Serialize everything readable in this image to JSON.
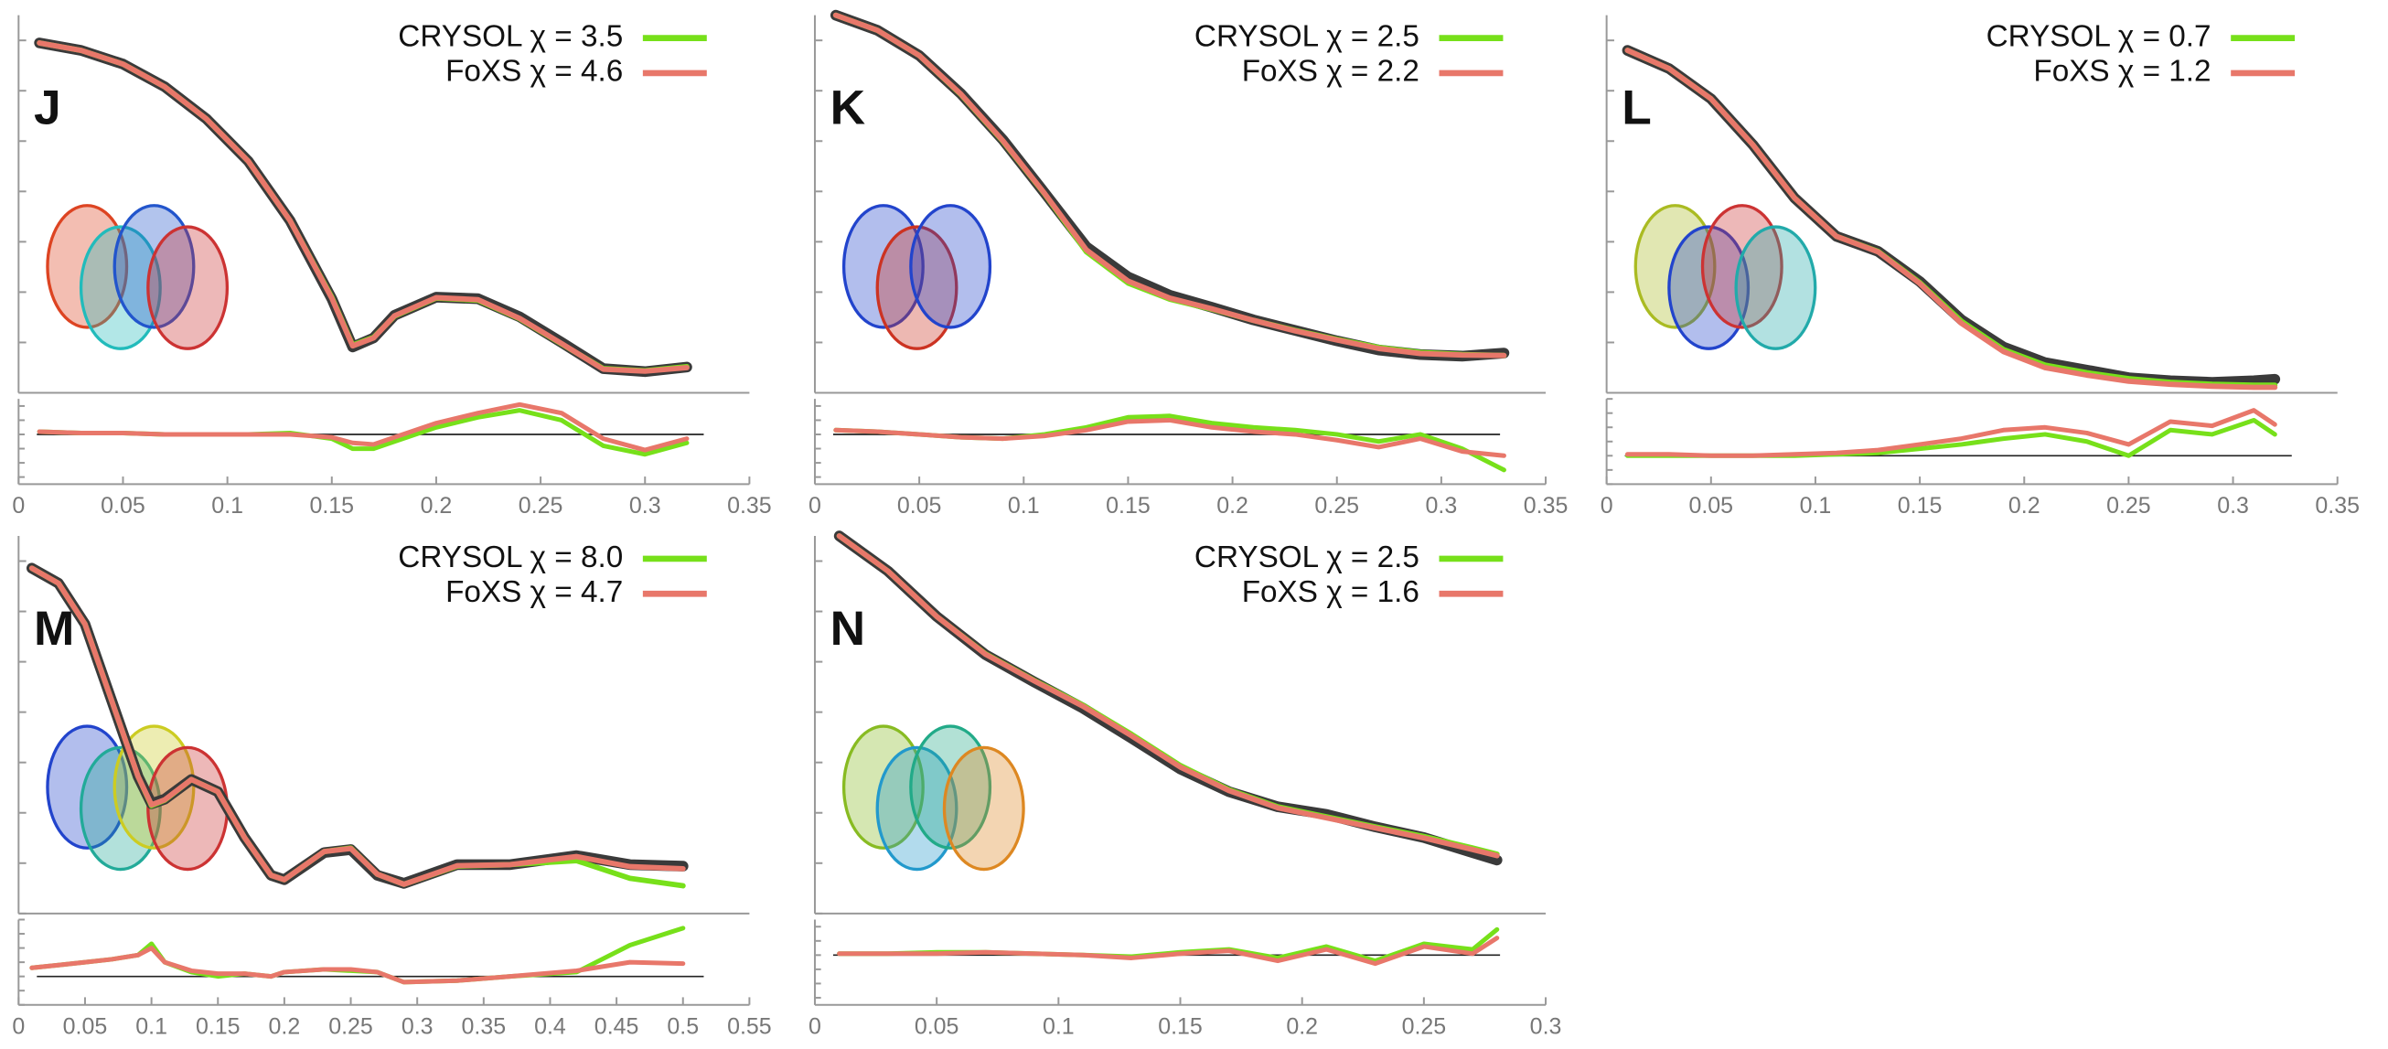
{
  "chart_data": [
    {
      "type": "line",
      "title": "J",
      "xlim": [
        0,
        0.35
      ],
      "xticks": [
        0,
        0.05,
        0.1,
        0.15,
        0.2,
        0.25,
        0.3,
        0.35
      ],
      "ylim": [
        0,
        7.5
      ],
      "yticks": [
        0,
        1,
        2,
        3,
        4,
        5,
        6,
        7
      ],
      "x": [
        0.01,
        0.03,
        0.05,
        0.07,
        0.09,
        0.11,
        0.13,
        0.15,
        0.16,
        0.17,
        0.18,
        0.2,
        0.22,
        0.24,
        0.26,
        0.28,
        0.3,
        0.32
      ],
      "data": {
        "color": "#3a3a3a",
        "values": [
          6.95,
          6.8,
          6.53,
          6.08,
          5.44,
          4.6,
          3.42,
          1.87,
          0.91,
          1.09,
          1.54,
          1.9,
          1.87,
          1.51,
          1.0,
          0.48,
          0.42,
          0.51
        ]
      },
      "series": [
        {
          "name": "CRYSOL χ = 3.5",
          "color": "#77e01a",
          "values": [
            6.95,
            6.8,
            6.53,
            6.08,
            5.44,
            4.6,
            3.42,
            1.9,
            0.95,
            1.1,
            1.52,
            1.88,
            1.84,
            1.47,
            0.97,
            0.48,
            0.44,
            0.52
          ]
        },
        {
          "name": "FoXS χ = 4.6",
          "color": "#e8776a",
          "values": [
            6.95,
            6.8,
            6.53,
            6.08,
            5.44,
            4.6,
            3.42,
            1.88,
            0.93,
            1.09,
            1.53,
            1.89,
            1.85,
            1.48,
            0.98,
            0.47,
            0.43,
            0.5
          ]
        }
      ],
      "residuals": {
        "ylim": [
          -3.5,
          2.5
        ],
        "yticks": [
          -3,
          -2,
          -1,
          0,
          1,
          2
        ],
        "zero": 0,
        "series": [
          {
            "color": "#77e01a",
            "values": [
              0.2,
              0.1,
              0.1,
              0,
              0,
              0,
              0.1,
              -0.3,
              -1,
              -1,
              -0.5,
              0.5,
              1.2,
              1.7,
              1,
              -0.8,
              -1.4,
              -0.6
            ]
          },
          {
            "color": "#e8776a",
            "values": [
              0.2,
              0.1,
              0.1,
              0,
              0,
              0,
              0,
              -0.2,
              -0.6,
              -0.7,
              -0.2,
              0.8,
              1.5,
              2.1,
              1.5,
              -0.3,
              -1.1,
              -0.3
            ]
          }
        ]
      }
    },
    {
      "type": "line",
      "title": "K",
      "xlim": [
        0,
        0.35
      ],
      "xticks": [
        0,
        0.05,
        0.1,
        0.15,
        0.2,
        0.25,
        0.3,
        0.35
      ],
      "ylim": [
        0,
        7.5
      ],
      "yticks": [
        0,
        1,
        2,
        3,
        4,
        5,
        6,
        7
      ],
      "x": [
        0.01,
        0.03,
        0.05,
        0.07,
        0.09,
        0.11,
        0.13,
        0.15,
        0.17,
        0.19,
        0.21,
        0.23,
        0.25,
        0.27,
        0.29,
        0.31,
        0.33
      ],
      "data": {
        "color": "#3a3a3a",
        "values": [
          7.5,
          7.2,
          6.7,
          5.94,
          5.03,
          3.97,
          2.9,
          2.3,
          1.94,
          1.7,
          1.45,
          1.24,
          1.03,
          0.85,
          0.76,
          0.73,
          0.79
        ]
      },
      "series": [
        {
          "name": "CRYSOL χ = 2.5",
          "color": "#77e01a",
          "values": [
            7.5,
            7.2,
            6.7,
            5.92,
            5.0,
            3.95,
            2.8,
            2.18,
            1.86,
            1.66,
            1.44,
            1.24,
            1.06,
            0.9,
            0.8,
            0.76,
            0.74
          ]
        },
        {
          "name": "FoXS χ = 2.2",
          "color": "#e8776a",
          "values": [
            7.5,
            7.2,
            6.7,
            5.93,
            5.01,
            3.96,
            2.84,
            2.22,
            1.88,
            1.67,
            1.44,
            1.23,
            1.05,
            0.88,
            0.78,
            0.75,
            0.74
          ]
        }
      ],
      "residuals": {
        "ylim": [
          -3.5,
          2.5
        ],
        "yticks": [
          -3,
          -2,
          -1,
          0,
          1,
          2
        ],
        "zero": 0,
        "series": [
          {
            "color": "#77e01a",
            "values": [
              0.3,
              0.2,
              0,
              -0.2,
              -0.3,
              0,
              0.5,
              1.2,
              1.3,
              0.8,
              0.5,
              0.3,
              0,
              -0.5,
              0,
              -1,
              -2.5
            ]
          },
          {
            "color": "#e8776a",
            "values": [
              0.3,
              0.2,
              0,
              -0.2,
              -0.3,
              -0.1,
              0.3,
              0.9,
              1.0,
              0.5,
              0.2,
              0,
              -0.4,
              -0.9,
              -0.3,
              -1.2,
              -1.5
            ]
          }
        ]
      }
    },
    {
      "type": "line",
      "title": "L",
      "xlim": [
        0,
        0.35
      ],
      "xticks": [
        0,
        0.05,
        0.1,
        0.15,
        0.2,
        0.25,
        0.3,
        0.35
      ],
      "ylim": [
        0,
        7.5
      ],
      "yticks": [
        0,
        1,
        2,
        3,
        4,
        5,
        6,
        7
      ],
      "x": [
        0.01,
        0.03,
        0.05,
        0.07,
        0.09,
        0.11,
        0.13,
        0.15,
        0.17,
        0.19,
        0.21,
        0.23,
        0.25,
        0.27,
        0.29,
        0.31,
        0.32
      ],
      "data": {
        "color": "#3a3a3a",
        "values": [
          6.8,
          6.44,
          5.84,
          4.93,
          3.87,
          3.11,
          2.81,
          2.21,
          1.45,
          0.91,
          0.6,
          0.45,
          0.3,
          0.24,
          0.21,
          0.24,
          0.27
        ]
      },
      "series": [
        {
          "name": "CRYSOL χ = 0.7",
          "color": "#77e01a",
          "values": [
            6.8,
            6.44,
            5.84,
            4.93,
            3.87,
            3.11,
            2.81,
            2.19,
            1.42,
            0.86,
            0.55,
            0.4,
            0.28,
            0.21,
            0.17,
            0.15,
            0.15
          ]
        },
        {
          "name": "FoXS χ = 1.2",
          "color": "#e8776a",
          "values": [
            6.8,
            6.44,
            5.84,
            4.93,
            3.87,
            3.11,
            2.8,
            2.17,
            1.38,
            0.82,
            0.5,
            0.35,
            0.23,
            0.17,
            0.13,
            0.11,
            0.11
          ]
        }
      ],
      "residuals": {
        "ylim": [
          -2,
          4
        ],
        "yticks": [
          -2,
          -1,
          0,
          1,
          2,
          3,
          4
        ],
        "zero": 0,
        "series": [
          {
            "color": "#77e01a",
            "values": [
              0,
              0,
              0,
              0,
              0,
              0.1,
              0.2,
              0.5,
              0.8,
              1.2,
              1.5,
              1,
              0,
              1.8,
              1.5,
              2.5,
              1.5
            ]
          },
          {
            "color": "#e8776a",
            "values": [
              0.1,
              0.1,
              0,
              0,
              0.1,
              0.2,
              0.4,
              0.8,
              1.2,
              1.8,
              2,
              1.6,
              0.8,
              2.4,
              2.1,
              3.2,
              2.2
            ]
          }
        ]
      }
    },
    {
      "type": "line",
      "title": "M",
      "xlim": [
        0,
        0.55
      ],
      "xticks": [
        0,
        0.05,
        0.1,
        0.15,
        0.2,
        0.25,
        0.3,
        0.35,
        0.4,
        0.45,
        0.5,
        0.55
      ],
      "ylim": [
        0,
        7.5
      ],
      "yticks": [
        0,
        1,
        2,
        3,
        4,
        5,
        6,
        7
      ],
      "x": [
        0.01,
        0.03,
        0.05,
        0.07,
        0.09,
        0.1,
        0.11,
        0.13,
        0.15,
        0.17,
        0.19,
        0.2,
        0.23,
        0.25,
        0.27,
        0.29,
        0.33,
        0.37,
        0.42,
        0.46,
        0.5
      ],
      "data": {
        "color": "#3a3a3a",
        "values": [
          6.86,
          6.56,
          5.75,
          4.23,
          2.72,
          2.18,
          2.27,
          2.66,
          2.42,
          1.51,
          0.76,
          0.67,
          1.21,
          1.27,
          0.76,
          0.6,
          0.97,
          0.97,
          1.15,
          0.97,
          0.94
        ]
      },
      "series": [
        {
          "name": "CRYSOL χ = 8.0",
          "color": "#77e01a",
          "values": [
            6.86,
            6.56,
            5.75,
            4.23,
            2.72,
            2.14,
            2.25,
            2.66,
            2.42,
            1.51,
            0.76,
            0.67,
            1.23,
            1.3,
            0.78,
            0.58,
            0.94,
            0.97,
            1.05,
            0.7,
            0.55
          ]
        },
        {
          "name": "FoXS χ = 4.7",
          "color": "#e8776a",
          "values": [
            6.86,
            6.56,
            5.75,
            4.23,
            2.72,
            2.16,
            2.26,
            2.66,
            2.42,
            1.51,
            0.76,
            0.67,
            1.23,
            1.29,
            0.78,
            0.58,
            0.95,
            0.97,
            1.13,
            0.93,
            0.89
          ]
        }
      ],
      "residuals": {
        "ylim": [
          -2,
          4
        ],
        "yticks": [
          -2,
          -1,
          0,
          1,
          2,
          3,
          4
        ],
        "zero": 0,
        "series": [
          {
            "color": "#77e01a",
            "values": [
              0.6,
              0.8,
              1,
              1.2,
              1.5,
              2.3,
              1,
              0.3,
              0,
              0.2,
              0,
              0.3,
              0.5,
              0.4,
              0.3,
              -0.4,
              -0.3,
              0,
              0.3,
              2.2,
              3.4
            ]
          },
          {
            "color": "#e8776a",
            "values": [
              0.6,
              0.8,
              1,
              1.2,
              1.5,
              2,
              1,
              0.4,
              0.2,
              0.2,
              0,
              0.3,
              0.5,
              0.5,
              0.3,
              -0.4,
              -0.3,
              0,
              0.4,
              1,
              0.9
            ]
          }
        ]
      }
    },
    {
      "type": "line",
      "title": "N",
      "xlim": [
        0,
        0.3
      ],
      "xticks": [
        0,
        0.05,
        0.1,
        0.15,
        0.2,
        0.25,
        0.3
      ],
      "ylim": [
        0,
        7.5
      ],
      "yticks": [
        0,
        1,
        2,
        3,
        4,
        5,
        6,
        7
      ],
      "x": [
        0.01,
        0.03,
        0.05,
        0.07,
        0.09,
        0.11,
        0.13,
        0.15,
        0.17,
        0.19,
        0.21,
        0.23,
        0.25,
        0.27,
        0.28
      ],
      "data": {
        "color": "#3a3a3a",
        "values": [
          7.5,
          6.8,
          5.9,
          5.14,
          4.6,
          4.08,
          3.48,
          2.87,
          2.42,
          2.12,
          1.97,
          1.72,
          1.51,
          1.21,
          1.06
        ]
      },
      "series": [
        {
          "name": "CRYSOL χ = 2.5",
          "color": "#77e01a",
          "values": [
            7.5,
            6.8,
            5.9,
            5.16,
            4.63,
            4.14,
            3.56,
            2.94,
            2.46,
            2.12,
            1.92,
            1.72,
            1.53,
            1.3,
            1.18
          ]
        },
        {
          "name": "FoXS χ = 1.6",
          "color": "#e8776a",
          "values": [
            7.5,
            6.8,
            5.9,
            5.15,
            4.62,
            4.12,
            3.53,
            2.91,
            2.44,
            2.1,
            1.9,
            1.7,
            1.5,
            1.27,
            1.15
          ]
        }
      ],
      "residuals": {
        "ylim": [
          -3.5,
          2.5
        ],
        "yticks": [
          -3,
          -2,
          -1,
          0,
          1,
          2
        ],
        "zero": 0,
        "series": [
          {
            "color": "#77e01a",
            "values": [
              0.1,
              0.1,
              0.2,
              0.2,
              0.1,
              0,
              -0.1,
              0.2,
              0.4,
              -0.2,
              0.6,
              -0.4,
              0.8,
              0.4,
              1.8
            ]
          },
          {
            "color": "#e8776a",
            "values": [
              0.1,
              0.1,
              0.1,
              0.2,
              0.1,
              0,
              -0.2,
              0.1,
              0.3,
              -0.4,
              0.4,
              -0.6,
              0.6,
              0.1,
              1.2
            ]
          }
        ]
      }
    }
  ]
}
